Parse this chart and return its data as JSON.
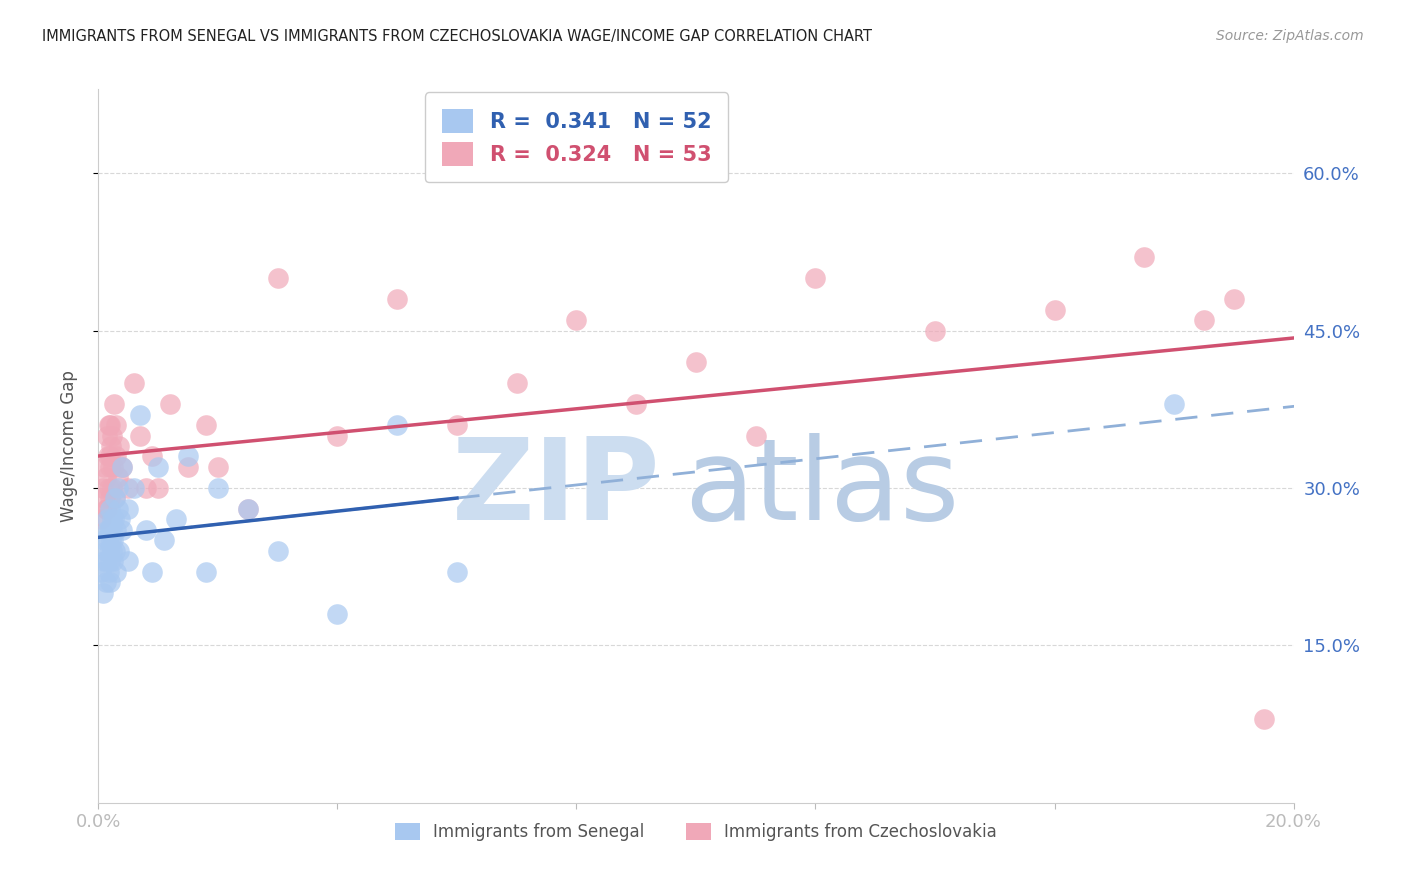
{
  "title": "IMMIGRANTS FROM SENEGAL VS IMMIGRANTS FROM CZECHOSLOVAKIA WAGE/INCOME GAP CORRELATION CHART",
  "source": "Source: ZipAtlas.com",
  "ylabel": "Wage/Income Gap",
  "xlim": [
    0.0,
    0.2
  ],
  "ylim": [
    0.0,
    0.68
  ],
  "yticks": [
    0.15,
    0.3,
    0.45,
    0.6
  ],
  "ytick_labels": [
    "15.0%",
    "30.0%",
    "45.0%",
    "60.0%"
  ],
  "xtick_positions": [
    0.0,
    0.04,
    0.08,
    0.12,
    0.16,
    0.2
  ],
  "xtick_labels": [
    "0.0%",
    "",
    "",
    "",
    "",
    "20.0%"
  ],
  "senegal_R": 0.341,
  "senegal_N": 52,
  "czech_R": 0.324,
  "czech_N": 53,
  "senegal_color": "#a8c8f0",
  "czech_color": "#f0a8b8",
  "senegal_line_color": "#3060b0",
  "czech_line_color": "#d05070",
  "dashed_line_color": "#90b0d8",
  "grid_color": "#d8d8d8",
  "tick_color": "#4472c4",
  "background_color": "#ffffff",
  "senegal_x": [
    0.0005,
    0.0008,
    0.001,
    0.001,
    0.0012,
    0.0013,
    0.0014,
    0.0015,
    0.0015,
    0.0016,
    0.0017,
    0.0018,
    0.0018,
    0.0019,
    0.002,
    0.002,
    0.002,
    0.0021,
    0.0022,
    0.0022,
    0.0023,
    0.0025,
    0.0025,
    0.0026,
    0.0027,
    0.0028,
    0.003,
    0.003,
    0.0032,
    0.0033,
    0.0035,
    0.0036,
    0.004,
    0.004,
    0.005,
    0.005,
    0.006,
    0.007,
    0.008,
    0.009,
    0.01,
    0.011,
    0.013,
    0.015,
    0.018,
    0.02,
    0.025,
    0.03,
    0.04,
    0.05,
    0.06,
    0.18
  ],
  "senegal_y": [
    0.22,
    0.2,
    0.23,
    0.25,
    0.21,
    0.24,
    0.26,
    0.23,
    0.27,
    0.25,
    0.22,
    0.24,
    0.26,
    0.28,
    0.21,
    0.23,
    0.26,
    0.25,
    0.27,
    0.24,
    0.26,
    0.23,
    0.25,
    0.27,
    0.29,
    0.24,
    0.22,
    0.26,
    0.28,
    0.3,
    0.24,
    0.27,
    0.26,
    0.32,
    0.28,
    0.23,
    0.3,
    0.37,
    0.26,
    0.22,
    0.32,
    0.25,
    0.27,
    0.33,
    0.22,
    0.3,
    0.28,
    0.24,
    0.18,
    0.36,
    0.22,
    0.38
  ],
  "czech_x": [
    0.0005,
    0.0008,
    0.001,
    0.001,
    0.0012,
    0.0013,
    0.0014,
    0.0015,
    0.0016,
    0.0017,
    0.0018,
    0.0019,
    0.002,
    0.002,
    0.002,
    0.0021,
    0.0022,
    0.0023,
    0.0025,
    0.0026,
    0.0028,
    0.003,
    0.003,
    0.0032,
    0.0035,
    0.004,
    0.005,
    0.006,
    0.007,
    0.008,
    0.009,
    0.01,
    0.012,
    0.015,
    0.018,
    0.02,
    0.025,
    0.03,
    0.04,
    0.05,
    0.06,
    0.07,
    0.08,
    0.09,
    0.1,
    0.11,
    0.12,
    0.14,
    0.16,
    0.175,
    0.185,
    0.19,
    0.195
  ],
  "czech_y": [
    0.27,
    0.3,
    0.29,
    0.32,
    0.28,
    0.31,
    0.35,
    0.28,
    0.33,
    0.36,
    0.3,
    0.33,
    0.29,
    0.32,
    0.36,
    0.34,
    0.3,
    0.35,
    0.32,
    0.38,
    0.29,
    0.33,
    0.36,
    0.31,
    0.34,
    0.32,
    0.3,
    0.4,
    0.35,
    0.3,
    0.33,
    0.3,
    0.38,
    0.32,
    0.36,
    0.32,
    0.28,
    0.5,
    0.35,
    0.48,
    0.36,
    0.4,
    0.46,
    0.38,
    0.42,
    0.35,
    0.5,
    0.45,
    0.47,
    0.52,
    0.46,
    0.48,
    0.08
  ]
}
